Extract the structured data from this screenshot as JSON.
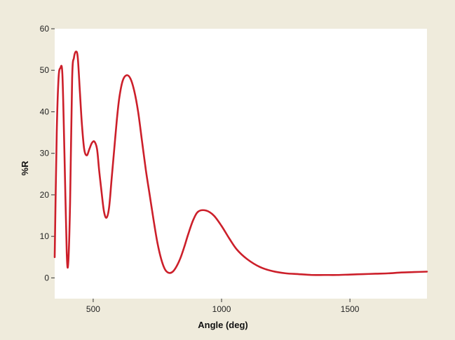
{
  "chart_data": {
    "type": "line",
    "title": "",
    "xlabel": "Angle (deg)",
    "ylabel": "%R",
    "xlim": [
      350,
      1800
    ],
    "ylim": [
      -5,
      60
    ],
    "xticks": [
      500,
      1000,
      1500
    ],
    "yticks": [
      0,
      10,
      20,
      30,
      40,
      50,
      60
    ],
    "grid": false,
    "legend": "none",
    "colors": {
      "background": "#efebdc",
      "plot_area": "#ffffff",
      "line": "#cc1f2a",
      "axis": "#333333"
    },
    "series": [
      {
        "x": [
          350,
          358,
          365,
          372,
          380,
          388,
          397,
          403,
          410,
          418,
          425,
          433,
          440,
          448,
          456,
          465,
          475,
          485,
          495,
          505,
          515,
          523,
          532,
          542,
          552,
          562,
          572,
          582,
          592,
          602,
          615,
          630,
          645,
          660,
          675,
          690,
          705,
          720,
          735,
          750,
          765,
          780,
          795,
          810,
          825,
          840,
          855,
          870,
          890,
          910,
          940,
          970,
          1000,
          1030,
          1060,
          1100,
          1150,
          1200,
          1250,
          1300,
          1350,
          1400,
          1450,
          1500,
          1550,
          1600,
          1650,
          1700,
          1750,
          1800
        ],
        "y": [
          5,
          35,
          48,
          50.5,
          49,
          30,
          6,
          3.8,
          18,
          48,
          53,
          54.5,
          53,
          45,
          37,
          31,
          29.5,
          31,
          32.5,
          32.8,
          31,
          26,
          21,
          16,
          14.5,
          17,
          24,
          31,
          38,
          43.5,
          47.5,
          48.8,
          48,
          45,
          40,
          33,
          26,
          20,
          14,
          8.5,
          4.5,
          2,
          1.2,
          1.5,
          2.8,
          4.8,
          7.5,
          10.5,
          14,
          16,
          16.2,
          15,
          12.5,
          9.5,
          6.8,
          4.5,
          2.6,
          1.6,
          1.1,
          0.9,
          0.7,
          0.7,
          0.7,
          0.8,
          0.9,
          1.0,
          1.1,
          1.3,
          1.4,
          1.5
        ]
      }
    ]
  }
}
